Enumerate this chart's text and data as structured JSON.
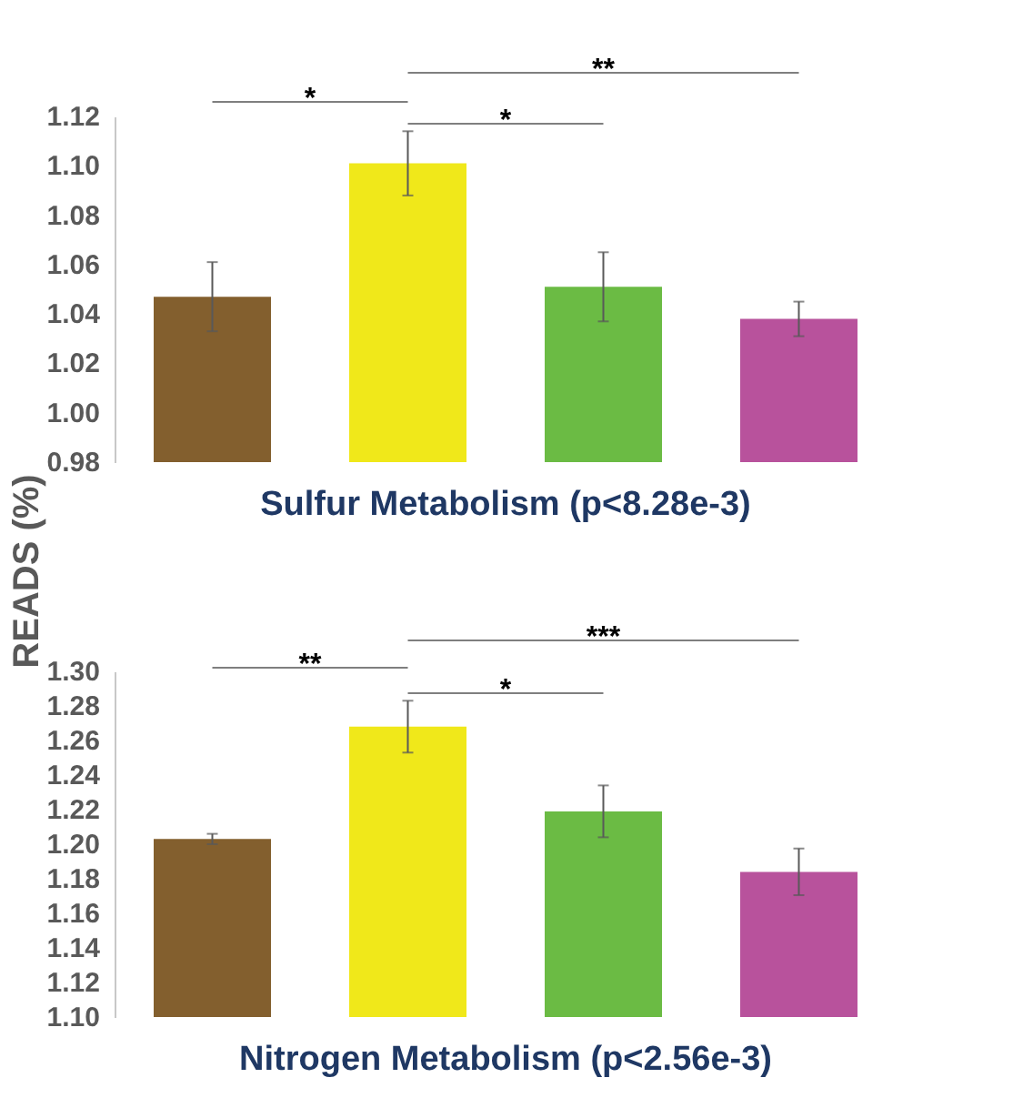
{
  "chart_data": [
    {
      "type": "bar",
      "title": "Sulfur Metabolism (p<8.28e-3)",
      "ylabel": "READS (%)",
      "categories": [
        null,
        null,
        null,
        null
      ],
      "values": [
        1.047,
        1.101,
        1.051,
        1.038
      ],
      "errors": [
        0.014,
        0.013,
        0.014,
        0.007
      ],
      "colors": [
        "#835f2e",
        "#f0e81a",
        "#6bbb44",
        "#b8529c"
      ],
      "ylim": [
        0.98,
        1.12
      ],
      "yticks": [
        {
          "value": 0.98,
          "label": "0.98"
        },
        {
          "value": 1.0,
          "label": "1.00"
        },
        {
          "value": 1.02,
          "label": "1.02"
        },
        {
          "value": 1.04,
          "label": "1.04"
        },
        {
          "value": 1.06,
          "label": "1.06"
        },
        {
          "value": 1.08,
          "label": "1.08"
        },
        {
          "value": 1.1,
          "label": "1.10"
        },
        {
          "value": 1.12,
          "label": "1.12"
        }
      ],
      "tick_labels": "y",
      "grid": false,
      "legend": false,
      "annotations": [
        "*",
        "**",
        "*"
      ]
    },
    {
      "type": "bar",
      "title": "Nitrogen Metabolism (p<2.56e-3)",
      "categories": [
        null,
        null,
        null,
        null
      ],
      "values": [
        1.203,
        1.268,
        1.219,
        1.184
      ],
      "errors": [
        0.003,
        0.015,
        0.015,
        0.0135
      ],
      "colors": [
        "#835f2e",
        "#f0e81a",
        "#6bbb44",
        "#b8529c"
      ],
      "ylim": [
        1.1,
        1.3
      ],
      "yticks": [
        {
          "value": 1.1,
          "label": "1.10"
        },
        {
          "value": 1.12,
          "label": "1.12"
        },
        {
          "value": 1.14,
          "label": "1.14"
        },
        {
          "value": 1.16,
          "label": "1.16"
        },
        {
          "value": 1.18,
          "label": "1.18"
        },
        {
          "value": 1.2,
          "label": "1.20"
        },
        {
          "value": 1.22,
          "label": "1.22"
        },
        {
          "value": 1.24,
          "label": "1.24"
        },
        {
          "value": 1.26,
          "label": "1.26"
        },
        {
          "value": 1.28,
          "label": "1.28"
        },
        {
          "value": 1.3,
          "label": "1.30"
        }
      ],
      "tick_labels": "y",
      "grid": false,
      "legend": false,
      "annotations": [
        "**",
        "***",
        "*"
      ]
    }
  ]
}
